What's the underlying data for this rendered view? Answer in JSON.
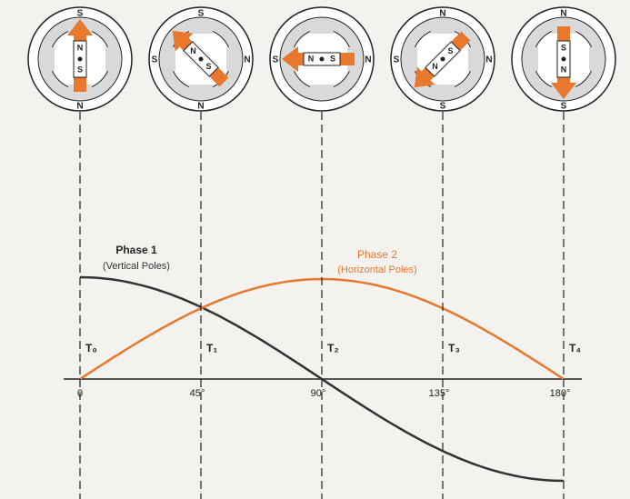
{
  "motors": [
    {
      "stator": {
        "top": "S",
        "bottom": "N"
      },
      "rotor": [
        "N",
        "S"
      ]
    },
    {
      "stator": {
        "top": "S",
        "bottom": "N",
        "left": "S",
        "right": "N"
      },
      "rotor": [
        "N",
        "S"
      ]
    },
    {
      "stator": {
        "left": "S",
        "right": "N"
      },
      "rotor": [
        "N",
        "S"
      ]
    },
    {
      "stator": {
        "top": "N",
        "bottom": "S",
        "left": "S",
        "right": "N"
      },
      "rotor": [
        "N",
        "S"
      ]
    },
    {
      "stator": {
        "top": "N",
        "bottom": "S"
      },
      "rotor": [
        "N",
        "S"
      ]
    }
  ],
  "phase1": {
    "title": "Phase 1",
    "subtitle": "(Vertical Poles)"
  },
  "phase2": {
    "title": "Phase 2",
    "subtitle": "(Horizontal Poles)"
  },
  "times": [
    "T₀",
    "T₁",
    "T₂",
    "T₃",
    "T₄"
  ],
  "angles": [
    "0",
    "45°",
    "90°",
    "135°",
    "180°"
  ]
}
